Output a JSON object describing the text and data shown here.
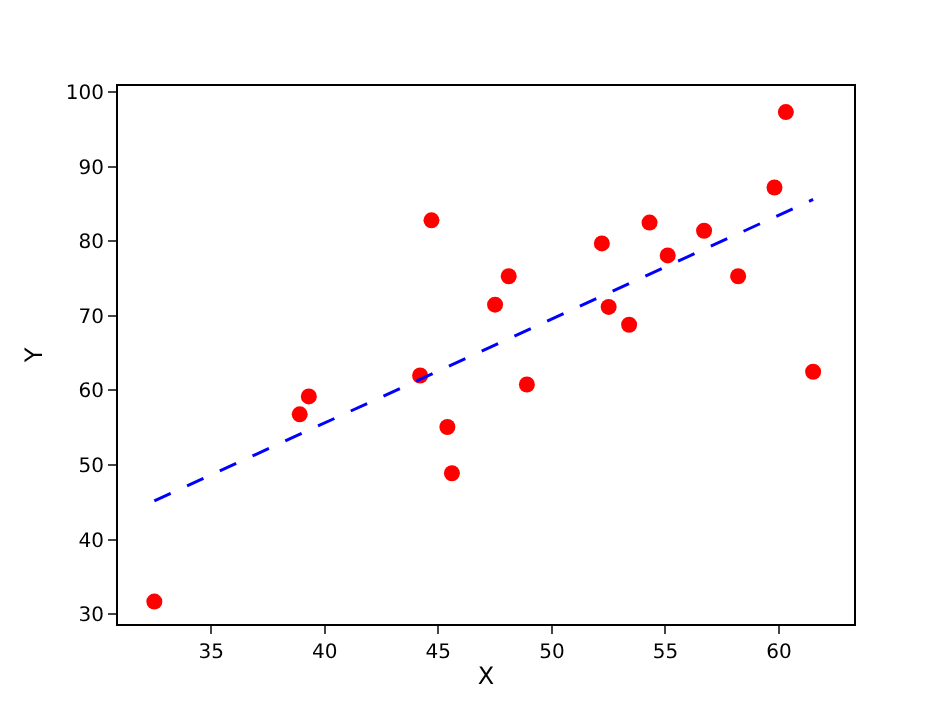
{
  "chart_data": {
    "type": "scatter",
    "xlabel": "X",
    "ylabel": "Y",
    "xlim": [
      30.9,
      63.3
    ],
    "ylim": [
      28.7,
      100.8
    ],
    "xticks": [
      35,
      40,
      45,
      50,
      55,
      60
    ],
    "yticks": [
      30,
      40,
      50,
      60,
      70,
      80,
      90,
      100
    ],
    "grid": false,
    "legend": false,
    "series": [
      {
        "color": "#ff0000",
        "marker": "circle",
        "x": [
          32.5,
          38.9,
          39.3,
          44.2,
          44.7,
          45.4,
          45.6,
          47.5,
          48.1,
          48.9,
          52.2,
          52.5,
          53.4,
          54.3,
          55.1,
          56.7,
          58.2,
          59.8,
          60.3,
          61.5
        ],
        "values": [
          31.7,
          56.8,
          59.2,
          62,
          82.8,
          55.1,
          48.9,
          71.5,
          75.3,
          60.8,
          79.7,
          71.2,
          68.8,
          82.5,
          78.1,
          81.4,
          75.3,
          87.2,
          97.3,
          62.5
        ]
      },
      {
        "type": "line",
        "color": "#0000ff",
        "line_style": "dashed",
        "marker": "none",
        "x": [
          32.5,
          61.5
        ],
        "values": [
          45.2,
          85.6
        ]
      }
    ]
  }
}
